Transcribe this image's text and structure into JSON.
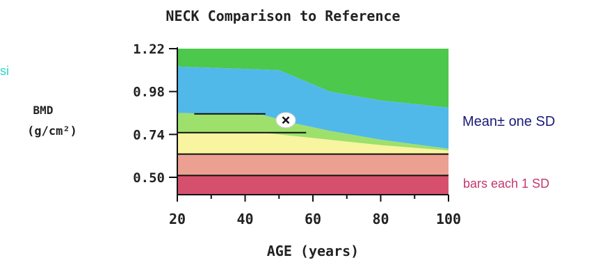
{
  "edge_fragments": {
    "top_left": "",
    "left_mid": "si"
  },
  "chart_data": {
    "type": "area",
    "title": "NECK Comparison to Reference",
    "xlabel": "AGE (years)",
    "ylabel_line1": "BMD",
    "ylabel_line2": "(g/cm²)",
    "xlim": [
      20,
      100
    ],
    "ylim": [
      0.3,
      1.22
    ],
    "x_ticks": [
      20,
      40,
      60,
      80,
      100
    ],
    "x_tick_labels": [
      "20",
      "40",
      "60",
      "80",
      "100"
    ],
    "y_ticks": [
      0.5,
      0.74,
      0.98,
      1.22
    ],
    "y_tick_labels": [
      "0.50",
      "0.74",
      "0.98",
      "1.22"
    ],
    "bands": [
      {
        "color": "#4cc84c",
        "top": [
          [
            20,
            1.22
          ],
          [
            100,
            1.22
          ]
        ],
        "bottom": [
          [
            20,
            1.12
          ],
          [
            50,
            1.1
          ],
          [
            65,
            0.98
          ],
          [
            80,
            0.93
          ],
          [
            100,
            0.89
          ]
        ]
      },
      {
        "color": "#50b9ea",
        "top": [
          [
            20,
            1.12
          ],
          [
            50,
            1.1
          ],
          [
            65,
            0.98
          ],
          [
            80,
            0.93
          ],
          [
            100,
            0.89
          ]
        ],
        "bottom": [
          [
            20,
            0.86
          ],
          [
            45,
            0.85
          ],
          [
            55,
            0.8
          ],
          [
            65,
            0.76
          ],
          [
            80,
            0.71
          ],
          [
            100,
            0.66
          ]
        ]
      },
      {
        "color": "#9ee06c",
        "top": [
          [
            20,
            0.86
          ],
          [
            45,
            0.85
          ],
          [
            55,
            0.8
          ],
          [
            65,
            0.76
          ],
          [
            80,
            0.71
          ],
          [
            100,
            0.66
          ]
        ],
        "bottom": [
          [
            20,
            0.75
          ],
          [
            45,
            0.75
          ],
          [
            60,
            0.72
          ],
          [
            80,
            0.68
          ],
          [
            100,
            0.65
          ]
        ]
      },
      {
        "color": "#f8f4a0",
        "top": [
          [
            20,
            0.75
          ],
          [
            45,
            0.75
          ],
          [
            60,
            0.72
          ],
          [
            80,
            0.68
          ],
          [
            100,
            0.65
          ]
        ],
        "bottom": [
          [
            20,
            0.63
          ],
          [
            100,
            0.63
          ]
        ]
      },
      {
        "color": "#eca092",
        "top": [
          [
            20,
            0.63
          ],
          [
            100,
            0.63
          ]
        ],
        "bottom": [
          [
            20,
            0.51
          ],
          [
            100,
            0.51
          ]
        ]
      },
      {
        "color": "#d6506e",
        "top": [
          [
            20,
            0.51
          ],
          [
            100,
            0.51
          ]
        ],
        "bottom": [
          [
            20,
            0.4
          ],
          [
            100,
            0.4
          ]
        ]
      }
    ],
    "reference_lines": [
      {
        "points": [
          [
            25,
            0.855
          ],
          [
            46,
            0.855
          ]
        ]
      },
      {
        "points": [
          [
            20,
            0.75
          ],
          [
            58,
            0.75
          ]
        ]
      },
      {
        "points": [
          [
            20,
            0.63
          ],
          [
            100,
            0.63
          ]
        ]
      },
      {
        "points": [
          [
            20,
            0.51
          ],
          [
            100,
            0.51
          ]
        ]
      }
    ],
    "patient": {
      "x": 52,
      "y": 0.82
    },
    "annotations": [
      {
        "text": "Mean± one SD",
        "color": "#1a1a78"
      },
      {
        "text": "bars each 1 SD",
        "color": "#c2366e"
      }
    ],
    "grid": false
  }
}
